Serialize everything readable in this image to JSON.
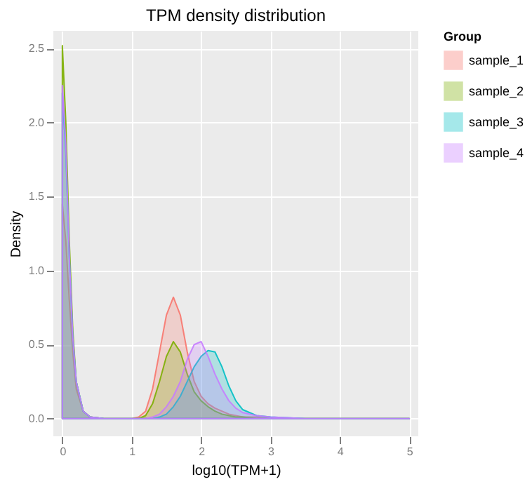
{
  "chart_data": {
    "type": "area",
    "title": "TPM density distribution",
    "xlabel": "log10(TPM+1)",
    "ylabel": "Density",
    "legend_title": "Group",
    "legend": "right",
    "grid": true,
    "x": [
      0,
      0.05,
      0.1,
      0.15,
      0.2,
      0.3,
      0.4,
      0.6,
      0.8,
      1.0,
      1.1,
      1.2,
      1.3,
      1.4,
      1.5,
      1.6,
      1.7,
      1.8,
      1.9,
      2.0,
      2.1,
      2.2,
      2.3,
      2.4,
      2.5,
      2.6,
      2.8,
      3.0,
      3.5,
      4.0,
      4.5,
      5.0
    ],
    "xlim": [
      -0.13,
      5.13
    ],
    "xticks": [
      0,
      1,
      2,
      3,
      4,
      5
    ],
    "ylim": [
      -0.12,
      2.62
    ],
    "yticks": [
      {
        "value": 0,
        "label": "0.0"
      },
      0.5,
      {
        "value": 1,
        "label": "1.0"
      },
      1.5,
      {
        "value": 2,
        "label": "2.0"
      },
      2.5
    ],
    "series": [
      {
        "name": "sample_1",
        "color": "#F8766D",
        "values": [
          1.45,
          1.2,
          0.8,
          0.45,
          0.2,
          0.05,
          0.01,
          0,
          0,
          0,
          0.01,
          0.05,
          0.2,
          0.45,
          0.7,
          0.82,
          0.7,
          0.45,
          0.25,
          0.15,
          0.1,
          0.07,
          0.05,
          0.03,
          0.02,
          0.01,
          0.01,
          0,
          0,
          0,
          0,
          0
        ]
      },
      {
        "name": "sample_2",
        "color": "#7CAE00",
        "values": [
          2.52,
          2.0,
          1.2,
          0.6,
          0.25,
          0.05,
          0.01,
          0,
          0,
          0,
          0,
          0.02,
          0.1,
          0.25,
          0.42,
          0.52,
          0.45,
          0.3,
          0.18,
          0.12,
          0.08,
          0.05,
          0.03,
          0.02,
          0.01,
          0.01,
          0,
          0,
          0,
          0,
          0,
          0
        ]
      },
      {
        "name": "sample_3",
        "color": "#00BFC4",
        "values": [
          2.2,
          1.8,
          1.1,
          0.55,
          0.25,
          0.05,
          0.01,
          0,
          0,
          0,
          0,
          0,
          0,
          0.01,
          0.03,
          0.08,
          0.15,
          0.25,
          0.35,
          0.42,
          0.46,
          0.45,
          0.35,
          0.22,
          0.12,
          0.06,
          0.02,
          0.01,
          0,
          0,
          0,
          0
        ]
      },
      {
        "name": "sample_4",
        "color": "#C77CFF",
        "values": [
          2.25,
          1.85,
          1.1,
          0.55,
          0.25,
          0.05,
          0.01,
          0,
          0,
          0,
          0,
          0,
          0.01,
          0.03,
          0.08,
          0.15,
          0.25,
          0.4,
          0.5,
          0.52,
          0.42,
          0.3,
          0.2,
          0.12,
          0.07,
          0.04,
          0.02,
          0.01,
          0,
          0,
          0,
          0
        ]
      }
    ]
  }
}
